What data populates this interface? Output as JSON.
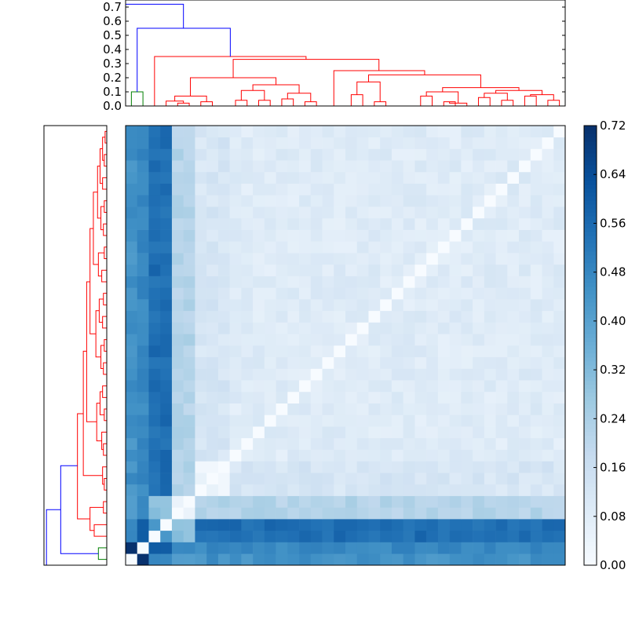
{
  "chart_data": [
    {
      "type": "dendrogram",
      "id": "top-dendrogram",
      "ylim": [
        0,
        0.75
      ],
      "yticks": [
        0.0,
        0.1,
        0.2,
        0.3,
        0.4,
        0.5,
        0.6,
        0.7
      ],
      "ytick_labels": [
        "0.0",
        "0.1",
        "0.2",
        "0.3",
        "0.4",
        "0.5",
        "0.6",
        "0.7"
      ],
      "link_colors": {
        "above_threshold": "#0000ff",
        "cluster_a": "#008000",
        "cluster_b": "#ff0000"
      },
      "leaf_count": 38
    },
    {
      "type": "dendrogram",
      "id": "left-dendrogram",
      "orientation": "left",
      "leaf_count": 38,
      "link_colors": {
        "above_threshold": "#0000ff",
        "cluster_a": "#008000",
        "cluster_b": "#ff0000"
      }
    },
    {
      "type": "heatmap",
      "id": "distance-heatmap",
      "rows": 38,
      "cols": 38,
      "colormap": "Blues",
      "vmin": 0.0,
      "vmax": 0.72,
      "colorbar_ticks": [
        0.0,
        0.08,
        0.16,
        0.24,
        0.32,
        0.4,
        0.48,
        0.56,
        0.64,
        0.72
      ],
      "colorbar_tick_labels": [
        "0.00",
        "0.08",
        "0.16",
        "0.24",
        "0.32",
        "0.40",
        "0.48",
        "0.56",
        "0.64",
        "0.72"
      ],
      "groups": {
        "note_ranges_are_row_col_indices_from_bottom": true,
        "outlier_a": 0,
        "outlier_b": 1,
        "pair_c": [
          2,
          3
        ],
        "pair_d": [
          4,
          5
        ],
        "small_cluster": [
          6,
          8
        ],
        "big_cluster": [
          9,
          37
        ]
      },
      "typical_values": {
        "diagonal": 0.0,
        "outlier_a_to_outlier_b": 0.72,
        "outlier_a_to_cluster": 0.45,
        "outlier_b_to_cluster": 0.47,
        "pair_c_to_cluster": 0.55,
        "pair_d_to_cluster": 0.22,
        "within_big_cluster": 0.09,
        "within_small_cluster": 0.04,
        "small_to_big": 0.12
      }
    }
  ]
}
